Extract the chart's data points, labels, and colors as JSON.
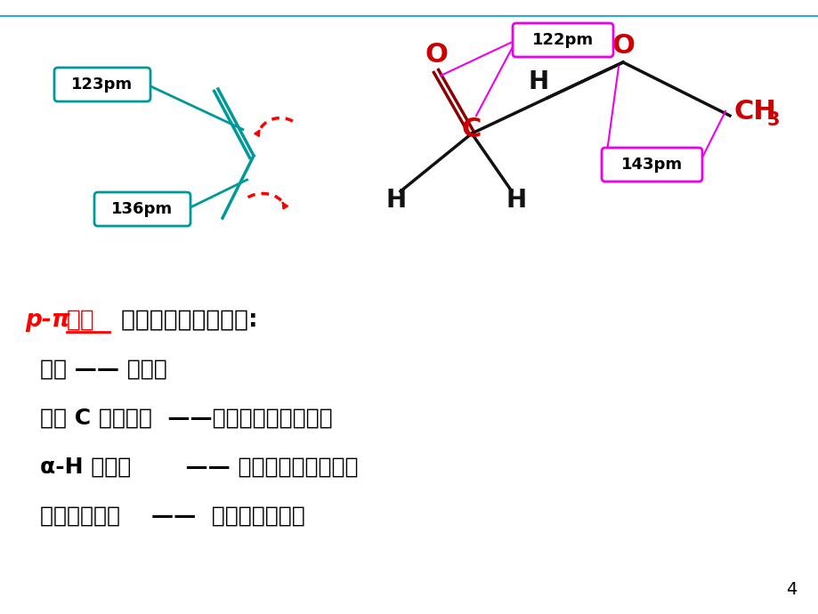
{
  "bg_color": "#ffffff",
  "top_line_color": "#29abe2",
  "page_num": "4",
  "label_123pm": "123pm",
  "label_136pm": "136pm",
  "label_box_color_left": "#00aaaa",
  "label_122pm": "122pm",
  "label_143pm": "143pm",
  "label_box_color_right": "#ff00ff",
  "heading_italic_red": "p-π ",
  "heading_bold_red_underline": "共轭",
  "heading_black": " 对结构与性质的影响:",
  "line1": "键长 —— 平均化",
  "line2": "罧基 C 的正电性  ——降低，亲核反应变难",
  "line3": "α-H 的活性       —— 降低，诱导效应减弱",
  "line4": "罧羟基的酸性    ——  增强，极性增强"
}
